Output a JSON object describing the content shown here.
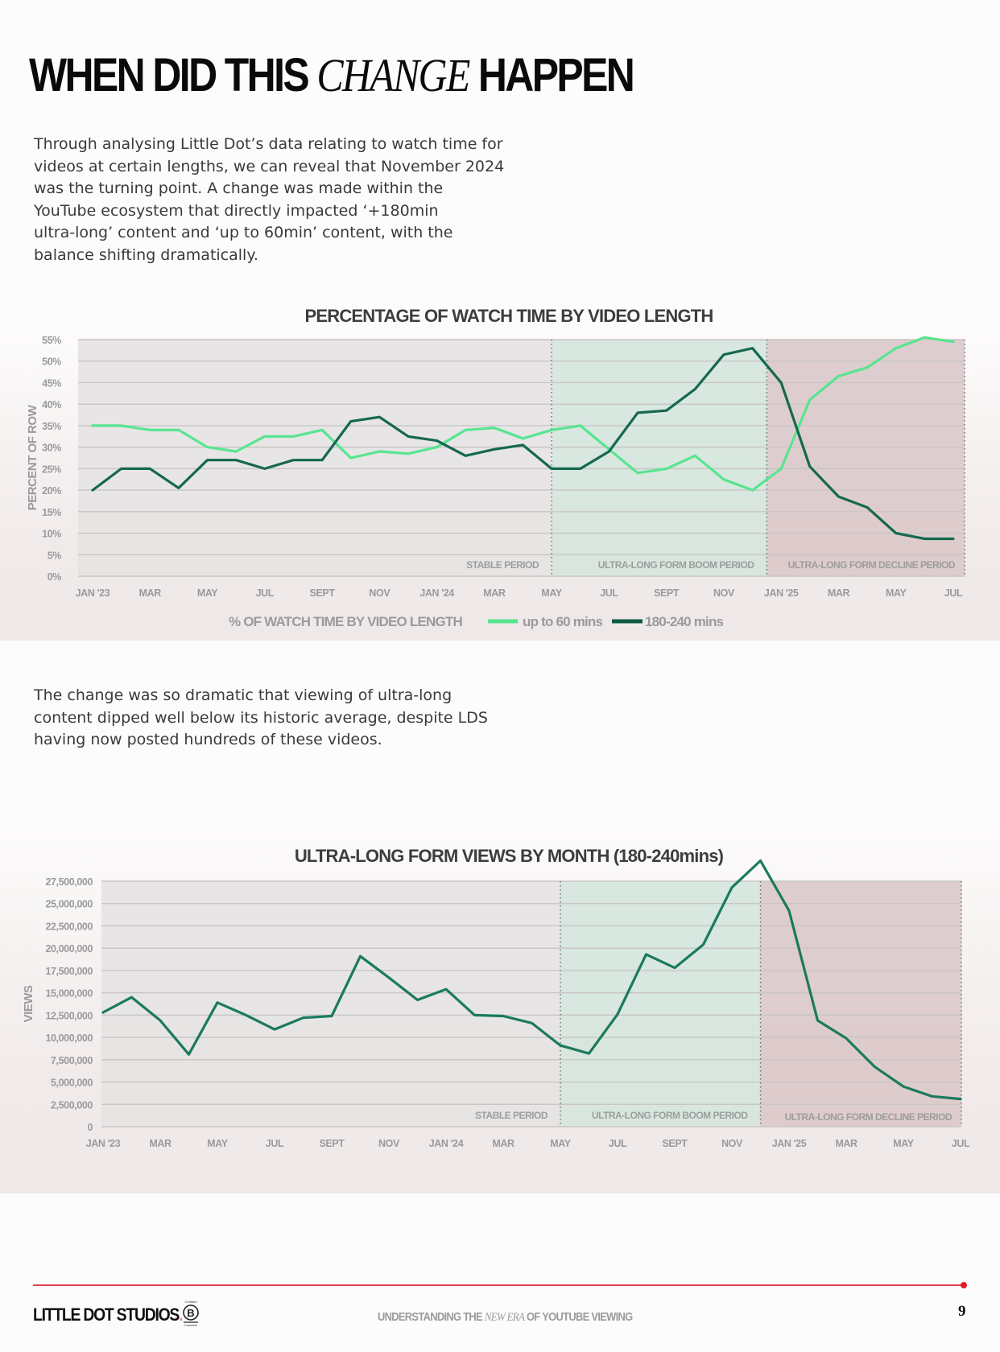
{
  "header": {
    "title_part1": "WHEN DID THIS ",
    "title_italic": "CHANGE",
    "title_part2": " HAPPEN"
  },
  "intro": {
    "lines": [
      "Through analysing Little Dot’s data relating to watch time for",
      "videos at certain lengths, we can reveal that November 2024",
      "was the turning point. A change was made within the",
      "YouTube ecosystem that directly impacted ‘+180min",
      "ultra-long’ content and ‘up to 60min’ content, with the",
      "balance shifting dramatically."
    ]
  },
  "outro": {
    "lines": [
      "The change was so dramatic that viewing of ultra-long",
      "content dipped well below its historic average, despite LDS",
      "having now posted hundreds of these videos."
    ]
  },
  "chart_data": [
    {
      "type": "line",
      "title": "PERCENTAGE OF WATCH TIME BY VIDEO LENGTH",
      "xlabel": "",
      "ylabel": "PERCENT OF ROW",
      "ylim": [
        0,
        55
      ],
      "yticks": [
        0,
        5,
        10,
        15,
        20,
        25,
        30,
        35,
        40,
        45,
        50,
        55
      ],
      "ytick_labels": [
        "0%",
        "5%",
        "10%",
        "15%",
        "20%",
        "25%",
        "30%",
        "35%",
        "40%",
        "45%",
        "50%",
        "55%"
      ],
      "grid": true,
      "x": [
        "Jan 2023",
        "Feb 2023",
        "Mar 2023",
        "Apr 2023",
        "May 2023",
        "Jun 2023",
        "Jul 2023",
        "Aug 2023",
        "Sep 2023",
        "Oct 2023",
        "Nov 2023",
        "Dec 2023",
        "Jan 2024",
        "Feb 2024",
        "Mar 2024",
        "Apr 2024",
        "May 2024",
        "Jun 2024",
        "Jul 2024",
        "Aug 2024",
        "Sep 2024",
        "Oct 2024",
        "Nov 2024",
        "Dec 2024",
        "Jan 2025",
        "Feb 2025",
        "Mar 2025",
        "Apr 2025",
        "May 2025",
        "Jun 2025",
        "Jul 2025"
      ],
      "xtick_labels": [
        {
          "index": 0,
          "label": "JAN '23"
        },
        {
          "index": 2,
          "label": "MAR"
        },
        {
          "index": 4,
          "label": "MAY"
        },
        {
          "index": 6,
          "label": "JUL"
        },
        {
          "index": 8,
          "label": "SEPT"
        },
        {
          "index": 10,
          "label": "NOV"
        },
        {
          "index": 12,
          "label": "JAN '24"
        },
        {
          "index": 14,
          "label": "MAR"
        },
        {
          "index": 16,
          "label": "MAY"
        },
        {
          "index": 18,
          "label": "JUL"
        },
        {
          "index": 20,
          "label": "SEPT"
        },
        {
          "index": 22,
          "label": "NOV"
        },
        {
          "index": 24,
          "label": "JAN '25"
        },
        {
          "index": 26,
          "label": "MAR"
        },
        {
          "index": 28,
          "label": "MAY"
        },
        {
          "index": 30,
          "label": "JUL"
        }
      ],
      "regions": [
        {
          "label": "STABLE  PERIOD",
          "from": 0,
          "to": 16,
          "color": "#e6e4e4"
        },
        {
          "label": "ULTRA-LONG FORM BOOM PERIOD",
          "from": 16,
          "to": 23.5,
          "color": "#d6e6dd"
        },
        {
          "label": "ULTRA-LONG FORM DECLINE PERIOD",
          "from": 23.5,
          "to": 30,
          "color": "#dccacb"
        }
      ],
      "legend": {
        "title": "% OF WATCH TIME BY VIDEO LENGTH",
        "position": "bottom"
      },
      "series": [
        {
          "name": "up to 60 mins",
          "color": "#57e58f",
          "values": [
            35,
            35,
            34,
            34,
            30,
            29,
            32.5,
            32.5,
            34,
            27.5,
            29,
            28.5,
            30,
            34,
            34.5,
            32,
            34,
            35,
            29.5,
            24,
            25,
            28,
            22.5,
            20,
            25,
            41,
            46.5,
            48.5,
            53,
            55.5,
            54.5
          ]
        },
        {
          "name": "180-240 mins",
          "color": "#15684f",
          "values": [
            20,
            25,
            25,
            20.5,
            27,
            27,
            25,
            27,
            27,
            36,
            37,
            32.5,
            31.5,
            28,
            29.5,
            30.5,
            25,
            25,
            29,
            38,
            38.5,
            43.5,
            51.5,
            53,
            45,
            25.5,
            18.5,
            16,
            10,
            8.7,
            8.7
          ]
        }
      ]
    },
    {
      "type": "line",
      "title": "ULTRA-LONG FORM VIEWS BY MONTH (180-240mins)",
      "xlabel": "",
      "ylabel": "VIEWS",
      "ylim": [
        0,
        27500000
      ],
      "yticks": [
        0,
        2500000,
        5000000,
        7500000,
        10000000,
        12500000,
        15000000,
        17500000,
        20000000,
        22500000,
        25000000,
        27500000
      ],
      "ytick_labels": [
        "0",
        "2,500,000",
        "5,000,000",
        "7,500,000",
        "10,000,000",
        "12,500,000",
        "15,000,000",
        "17,500,000",
        "20,000,000",
        "22,500,000",
        "25,000,000",
        "27,500,000"
      ],
      "grid": true,
      "x": [
        "Jan 2023",
        "Feb 2023",
        "Mar 2023",
        "Apr 2023",
        "May 2023",
        "Jun 2023",
        "Jul 2023",
        "Aug 2023",
        "Sep 2023",
        "Oct 2023",
        "Nov 2023",
        "Dec 2023",
        "Jan 2024",
        "Feb 2024",
        "Mar 2024",
        "Apr 2024",
        "May 2024",
        "Jun 2024",
        "Jul 2024",
        "Aug 2024",
        "Sep 2024",
        "Oct 2024",
        "Nov 2024",
        "Dec 2024",
        "Jan 2025",
        "Feb 2025",
        "Mar 2025",
        "Apr 2025",
        "May 2025",
        "Jun 2025",
        "Jul 2025"
      ],
      "xtick_labels": [
        {
          "index": 0,
          "label": "JAN '23"
        },
        {
          "index": 2,
          "label": "MAR"
        },
        {
          "index": 4,
          "label": "MAY"
        },
        {
          "index": 6,
          "label": "JUL"
        },
        {
          "index": 8,
          "label": "SEPT"
        },
        {
          "index": 10,
          "label": "NOV"
        },
        {
          "index": 12,
          "label": "JAN '24"
        },
        {
          "index": 14,
          "label": "MAR"
        },
        {
          "index": 16,
          "label": "MAY"
        },
        {
          "index": 18,
          "label": "JUL"
        },
        {
          "index": 20,
          "label": "SEPT"
        },
        {
          "index": 22,
          "label": "NOV"
        },
        {
          "index": 24,
          "label": "JAN '25"
        },
        {
          "index": 26,
          "label": "MAR"
        },
        {
          "index": 28,
          "label": "MAY"
        },
        {
          "index": 30,
          "label": "JUL"
        }
      ],
      "regions": [
        {
          "label": "STABLE  PERIOD",
          "from": 0,
          "to": 16,
          "color": "#e6e4e4"
        },
        {
          "label": "ULTRA-LONG FORM BOOM PERIOD",
          "from": 16,
          "to": 23,
          "color": "#d6e6dd"
        },
        {
          "label": "ULTRA-LONG FORM DECLINE PERIOD",
          "from": 23,
          "to": 30,
          "color": "#dccacb"
        }
      ],
      "series": [
        {
          "name": "180-240 mins views",
          "color": "#1a7a5e",
          "values": [
            12800000,
            14500000,
            11900000,
            8100000,
            13900000,
            12500000,
            10900000,
            12200000,
            12400000,
            19100000,
            16700000,
            14200000,
            15400000,
            12500000,
            12400000,
            11600000,
            9100000,
            8200000,
            12600000,
            19300000,
            17800000,
            20400000,
            26800000,
            29800000,
            24200000,
            11900000,
            9900000,
            6700000,
            4500000,
            3400000,
            3100000
          ]
        }
      ]
    }
  ],
  "footer": {
    "brand": "LITTLE DOT STUDIOS",
    "brand_dot": ".",
    "bcorp_top": "Certified",
    "bcorp_letter": "B",
    "bcorp_bottom": "Corporation",
    "center_part1": "UNDERSTANDING THE ",
    "center_italic": "NEW ERA",
    "center_part2": " OF YOUTUBE VIEWING",
    "page_number": "9",
    "accent_color": "#e01e25"
  }
}
